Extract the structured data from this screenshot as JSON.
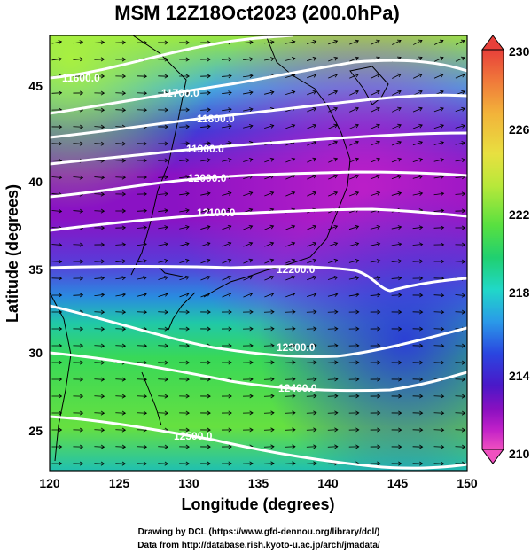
{
  "title": "MSM 12Z18Oct2023 (200.0hPa)",
  "x_axis_label": "Longitude (degrees)",
  "y_axis_label": "Latitude  (degrees)",
  "x_ticks": [
    "120",
    "125",
    "130",
    "135",
    "140",
    "145",
    "150"
  ],
  "y_ticks": [
    "25",
    "30",
    "35",
    "40",
    "45"
  ],
  "colorbar": {
    "labels": [
      "230",
      "226",
      "222",
      "218",
      "214",
      "210"
    ],
    "colors": [
      "#e8403a",
      "#f07a3a",
      "#f2b33a",
      "#e8e040",
      "#b8e83a",
      "#58e040",
      "#20d070",
      "#20d8c8",
      "#2a9ae8",
      "#2a46e0",
      "#4a18c8",
      "#8a10c0",
      "#c020c8",
      "#f050c0"
    ]
  },
  "contours": [
    {
      "label": "11600.0"
    },
    {
      "label": "11700.0"
    },
    {
      "label": "11800.0"
    },
    {
      "label": "11900.0"
    },
    {
      "label": "12000.0"
    },
    {
      "label": "12100.0"
    },
    {
      "label": "12200.0"
    },
    {
      "label": "12300.0"
    },
    {
      "label": "12400.0"
    },
    {
      "label": "12500.0"
    }
  ],
  "credits": {
    "line1": "Drawing by DCL (https://www.gfd-dennou.org/library/dcl/)",
    "line2": "Data from http://database.rish.kyoto-u.ac.jp/arch/jmadata/"
  },
  "chart_data": {
    "type": "heatmap",
    "title": "MSM 12Z18Oct2023 (200.0hPa)",
    "xlabel": "Longitude (degrees)",
    "ylabel": "Latitude  (degrees)",
    "xlim": [
      120,
      150
    ],
    "ylim": [
      22.5,
      47.5
    ],
    "colorbar_range": [
      210,
      230
    ],
    "contour_interval": 100,
    "contour_levels": [
      11600,
      11700,
      11800,
      11900,
      12000,
      12100,
      12200,
      12300,
      12400,
      12500
    ]
  }
}
